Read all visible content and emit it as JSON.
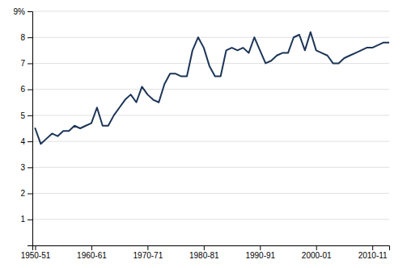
{
  "chart_data": {
    "type": "line",
    "x": [
      0,
      1,
      2,
      3,
      4,
      5,
      6,
      7,
      8,
      9,
      10,
      11,
      12,
      13,
      14,
      15,
      16,
      17,
      18,
      19,
      20,
      21,
      22,
      23,
      24,
      25,
      26,
      27,
      28,
      29,
      30,
      31,
      32,
      33,
      34,
      35,
      36,
      37,
      38,
      39,
      40,
      41,
      42,
      43,
      44,
      45,
      46,
      47,
      48,
      49,
      50,
      51,
      52,
      53,
      54,
      55,
      56,
      57,
      58,
      59,
      60,
      61,
      62,
      63
    ],
    "values": [
      4.5,
      3.9,
      4.1,
      4.3,
      4.2,
      4.4,
      4.4,
      4.6,
      4.5,
      4.6,
      4.7,
      5.3,
      4.6,
      4.6,
      5.0,
      5.3,
      5.6,
      5.8,
      5.5,
      6.1,
      5.8,
      5.6,
      5.5,
      6.2,
      6.6,
      6.6,
      6.5,
      6.5,
      7.5,
      8.0,
      7.6,
      6.9,
      6.5,
      6.5,
      7.5,
      7.6,
      7.5,
      7.6,
      7.4,
      8.0,
      7.5,
      7.0,
      7.1,
      7.3,
      7.4,
      7.4,
      8.0,
      8.1,
      7.5,
      8.2,
      7.5,
      7.4,
      7.3,
      7.0,
      7.0,
      7.2,
      7.3,
      7.4,
      7.5,
      7.6,
      7.6,
      7.7,
      7.8,
      7.8
    ],
    "color": "#1c3557",
    "xlim": [
      -0.5,
      63
    ],
    "xticks": [
      {
        "value": 0,
        "label": "1950-51"
      },
      {
        "value": 10,
        "label": "1960-61"
      },
      {
        "value": 20,
        "label": "1970-71"
      },
      {
        "value": 30,
        "label": "1980-81"
      },
      {
        "value": 40,
        "label": "1990-91"
      },
      {
        "value": 50,
        "label": "2000-01"
      },
      {
        "value": 60,
        "label": "2010-11"
      }
    ],
    "ylim": [
      0,
      9
    ],
    "yticks": [
      1,
      2,
      3,
      4,
      5,
      6,
      7,
      8,
      {
        "value": 9,
        "label": "9%"
      }
    ],
    "grid": true
  }
}
